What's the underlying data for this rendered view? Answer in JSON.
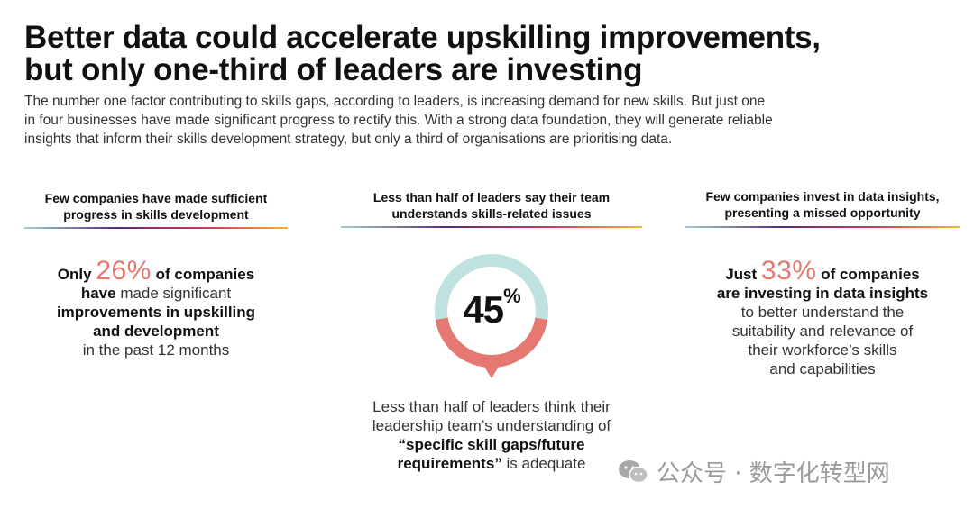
{
  "title_line1": "Better data could accelerate upskilling improvements,",
  "title_line2": "but only one-third of leaders are investing",
  "intro_line1": "The number one factor contributing to skills gaps, according to leaders, is increasing demand for new skills. But just one",
  "intro_line2": "in four businesses have made significant progress to rectify this. With a strong data foundation, they will generate reliable",
  "intro_line3": "insights that inform their skills development strategy, but only a third of organisations are prioritising data.",
  "colors": {
    "accent": "#e57871",
    "ring_top": "#bfe1df"
  },
  "col1": {
    "head_line1": "Few companies have made sufficient",
    "head_line2": "progress in skills development",
    "only": "Only",
    "pct": "26%",
    "of_companies": "of companies",
    "have": "have",
    "made_significant": "made significant",
    "line3": "improvements in upskilling",
    "line4": "and development",
    "line5": "in the past 12 months"
  },
  "col2": {
    "head_line1": "Less than half of leaders say their team",
    "head_line2": "understands skills-related issues",
    "donut_num": "45",
    "donut_pct": "%",
    "donut_value": 0.45,
    "line1": "Less than half of leaders think their",
    "line2": "leadership team’s understanding of",
    "line3": "“specific skill gaps/future",
    "line4a": "requirements”",
    "line4b": "is adequate"
  },
  "col3": {
    "head_line1": "Few companies invest in data insights,",
    "head_line2": "presenting a missed opportunity",
    "just": "Just",
    "pct": "33%",
    "of_companies": "of companies",
    "line2": "are investing in data insights",
    "line3": "to better understand the",
    "line4": "suitability and relevance of",
    "line5": "their workforce’s skills",
    "line6": "and capabilities"
  },
  "watermark": "公众号 · 数字化转型网",
  "watermark_icon": "wechat-icon"
}
